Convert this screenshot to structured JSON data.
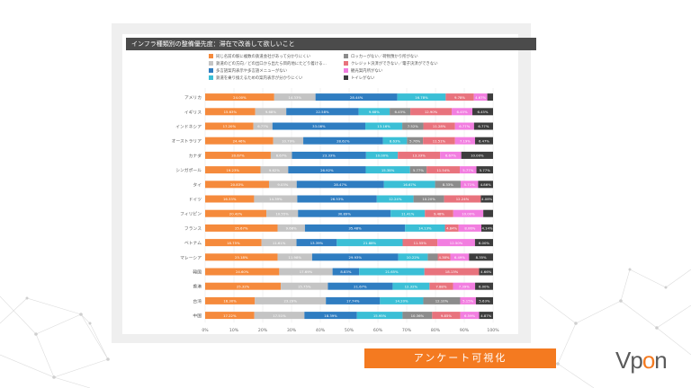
{
  "slide": {
    "banner_text": "アンケート可視化",
    "logo_text_main": "Vp",
    "logo_text_accent": "o",
    "logo_text_end": "n",
    "accent_color": "#f47a20"
  },
  "chart_data": {
    "type": "bar",
    "stacked": true,
    "orientation": "horizontal",
    "title": "インフラ種類別の整備優先度：滞在で改善して欲しいこと",
    "xlim": [
      0,
      100
    ],
    "xticks": [
      "0%",
      "10%",
      "20%",
      "30%",
      "40%",
      "50%",
      "60%",
      "70%",
      "80%",
      "90%",
      "100%"
    ],
    "categories": [
      "アメリカ",
      "イギリス",
      "インドネシア",
      "オーストラリア",
      "カナダ",
      "シンガポール",
      "タイ",
      "ドイツ",
      "フィリピン",
      "フランス",
      "ベトナム",
      "マレーシア",
      "韓国",
      "香港",
      "台湾",
      "中国"
    ],
    "legend": [
      {
        "name": "同じ名前の駅に複数の鉄道会社があって分かりにくい",
        "color": "#f58a3c"
      },
      {
        "name": "ロッカーがない／荷物預かり所がない",
        "color": "#8c8c8c"
      },
      {
        "name": "鉄道のどの方向／どの出口から出たら目的地にたどり着ける…",
        "color": "#c4c4c4"
      },
      {
        "name": "クレジット決済ができない／電子決済ができない",
        "color": "#e8737d"
      },
      {
        "name": "多言語案内表示や多言語メニューがない",
        "color": "#2f7dc1"
      },
      {
        "name": "観光案内所がない",
        "color": "#f27ee0"
      },
      {
        "name": "鉄道を乗り換えるための案内表示が分かりにくい",
        "color": "#3bbfd6"
      },
      {
        "name": "トイレがない",
        "color": "#3d3d3d"
      }
    ],
    "series": [
      {
        "name": "同じ名前の駅に複数の鉄道会社があって分かりにくい",
        "color": "#f58a3c",
        "values": [
          24.0,
          15.63,
          17.2,
          24.46,
          20.67,
          19.23,
          20.83,
          16.33,
          20.42,
          25.67,
          18.75,
          25.18,
          24.6,
          25.32,
          16.3,
          17.22
        ],
        "labels": true
      },
      {
        "name": "鉄道のどの方向／どの出口から出たら目的地にたどり着ける…",
        "color": "#c4c4c4",
        "values": [
          14.33,
          9.68,
          6.77,
          10.79,
          6.67,
          9.62,
          9.03,
          14.39,
          10.55,
          9.68,
          11.61,
          11.98,
          17.69,
          15.75,
          23.29,
          17.51
        ],
        "labels": true
      },
      {
        "name": "多言語案内表示や多言語メニューがない",
        "color": "#2f7dc1",
        "values": [
          28.44,
          22.58,
          33.08,
          28.62,
          23.33,
          26.92,
          28.47,
          26.53,
          30.89,
          35.48,
          13.39,
          29.93,
          8.83,
          21.67,
          17.74,
          18.39
        ],
        "labels": true
      },
      {
        "name": "鉄道を乗り換えるための案内表示が分かりにくい",
        "color": "#3bbfd6",
        "values": [
          16.78,
          9.68,
          13.16,
          8.63,
          10.0,
          15.38,
          16.67,
          12.24,
          11.41,
          14.13,
          21.88,
          10.22,
          21.65,
          12.32,
          14.2,
          15.95
        ],
        "labels": true
      },
      {
        "name": "ロッカーがない／荷物預かり所がない",
        "color": "#8c8c8c",
        "values": [
          0,
          6.45,
          7.52,
          5.76,
          0,
          5.77,
          8.33,
          10.2,
          0,
          0,
          0,
          3.47,
          0,
          0,
          12.1,
          10.36
        ],
        "labels": true
      },
      {
        "name": "クレジット決済ができない／電子決済ができない",
        "color": "#e8737d",
        "values": [
          9.78,
          12.9,
          11.28,
          11.51,
          13.33,
          11.54,
          0,
          12.24,
          9.48,
          4.84,
          11.55,
          4.38,
          18.13,
          7.88,
          0,
          9.85
        ],
        "labels": true
      },
      {
        "name": "観光案内所がない",
        "color": "#f27ee0",
        "values": [
          4.67,
          6.45,
          6.77,
          7.19,
          6.67,
          5.77,
          5.71,
          0,
          10.0,
          8.06,
          12.5,
          6.49,
          0,
          7.39,
          5.15,
          6.59
        ],
        "labels": true
      },
      {
        "name": "トイレがない",
        "color": "#3d3d3d",
        "values": [
          2.0,
          6.45,
          6.77,
          6.47,
          10.0,
          5.77,
          4.86,
          4.08,
          3.26,
          4.14,
          6.0,
          8.35,
          4.66,
          6.0,
          5.63,
          4.87
        ],
        "labels": true
      }
    ],
    "trailing_labels": [
      "",
      "6.45%",
      "6.77%",
      "6.47%",
      "10.00%",
      "5.77%",
      "4.86%",
      "4.08%",
      "",
      "",
      "",
      "",
      "4.66%",
      "",
      "5.63%",
      "4.87%"
    ]
  }
}
